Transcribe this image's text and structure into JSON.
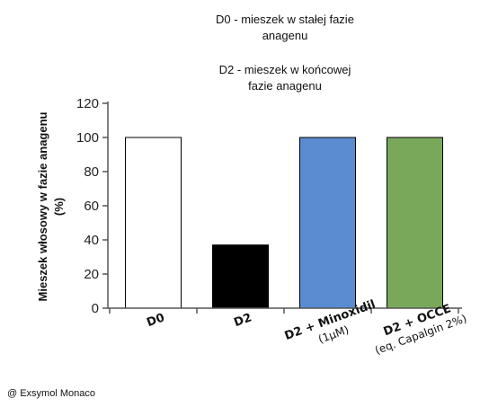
{
  "chart_data": {
    "type": "bar",
    "categories": [
      "D0",
      "D2",
      "D2 + Minoxidil (1µM)",
      "D2 + OCCE (eq. Capalgin 2%)"
    ],
    "category_lines": [
      [
        "D0"
      ],
      [
        "D2"
      ],
      [
        "D2 + Minoxidil",
        "(1µM)"
      ],
      [
        "D2 + OCCE",
        "(eq. Capalgin 2%)"
      ]
    ],
    "values": [
      100,
      37,
      100,
      100
    ],
    "bar_colors": [
      "#ffffff",
      "#000000",
      "#5b8bd0",
      "#79a85a"
    ],
    "ylabel_lines": [
      "Mieszek włosowy w fazie anagenu",
      "(%)"
    ],
    "ylim": [
      0,
      120
    ],
    "yticks": [
      0,
      20,
      40,
      60,
      80,
      100,
      120
    ],
    "grid": false,
    "notes": [
      [
        "D0 - mieszek w stałej fazie",
        "anagenu"
      ],
      [
        "D2 - mieszek w końcowej",
        "fazie anagenu"
      ]
    ]
  },
  "credit": "@ Exsymol Monaco"
}
